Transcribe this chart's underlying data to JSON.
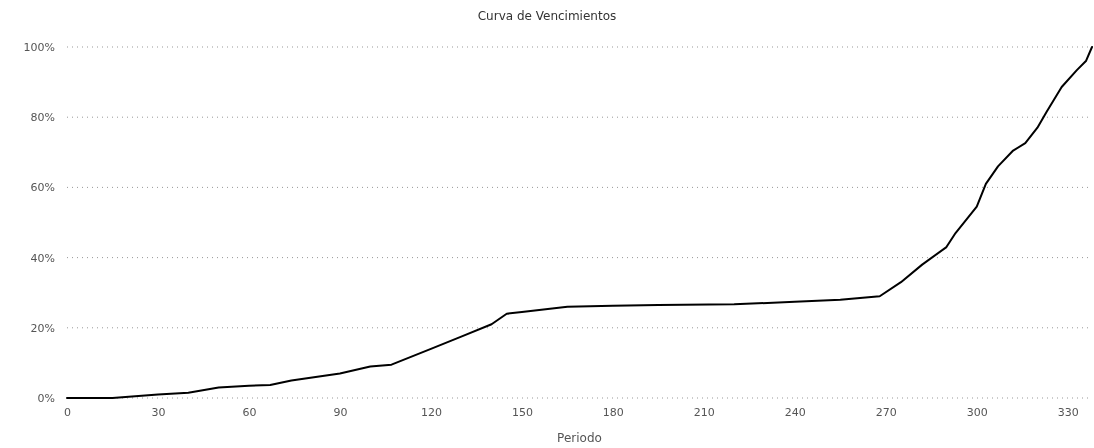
{
  "chart_data": {
    "type": "line",
    "title": "Curva de Vencimientos",
    "xlabel": "Periodo",
    "x": [
      0,
      15,
      30,
      40,
      50,
      60,
      67,
      74,
      90,
      100,
      107,
      120,
      130,
      140,
      145,
      150,
      165,
      180,
      195,
      220,
      240,
      255,
      268,
      275,
      282,
      290,
      293,
      300,
      303,
      307,
      312,
      316,
      320,
      323,
      328,
      333,
      336,
      338
    ],
    "series": [
      {
        "color": "#000000",
        "values": [
          0,
          0,
          1,
          1.5,
          3,
          3.5,
          3.7,
          5,
          7,
          9,
          9.5,
          14,
          17.5,
          21,
          24,
          24.5,
          26,
          26.3,
          26.5,
          26.7,
          27.4,
          28,
          29,
          33,
          38,
          43,
          47,
          54.5,
          61,
          66,
          70.5,
          72.6,
          77,
          81.5,
          88.6,
          93.4,
          96,
          100
        ]
      }
    ],
    "xlim": [
      0,
      338
    ],
    "xticks": [
      0,
      30,
      60,
      90,
      120,
      150,
      180,
      210,
      240,
      270,
      300,
      330
    ],
    "ylim": [
      0,
      100
    ],
    "yticks": [
      {
        "value": 0,
        "label": "0%"
      },
      {
        "value": 20,
        "label": "20%"
      },
      {
        "value": 40,
        "label": "40%"
      },
      {
        "value": 60,
        "label": "60%"
      },
      {
        "value": 80,
        "label": "80%"
      },
      {
        "value": 100,
        "label": "100%"
      }
    ],
    "grid": "y",
    "marker": "none",
    "line_style": "solid"
  }
}
